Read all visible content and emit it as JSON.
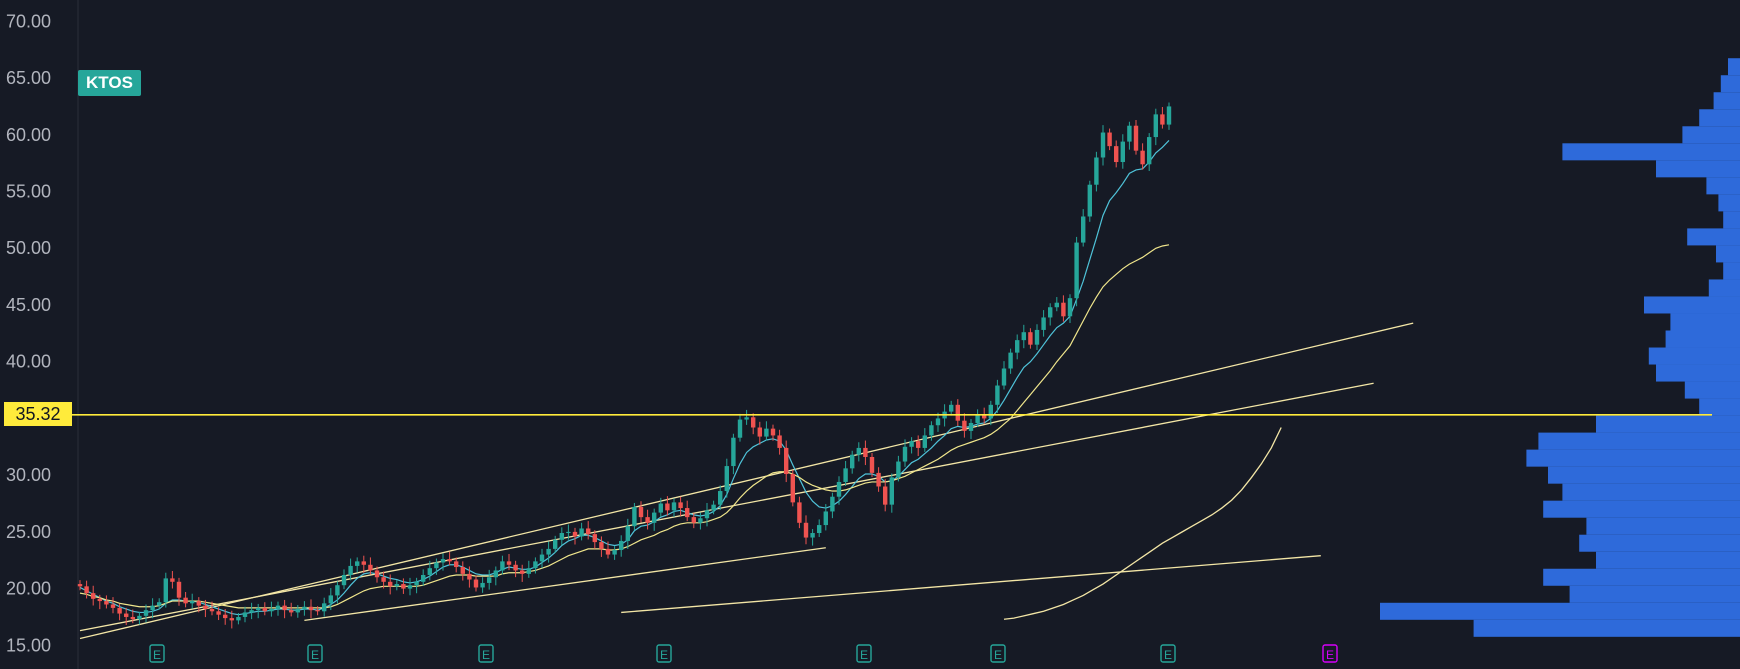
{
  "chart_data": {
    "type": "candlestick",
    "symbol": "KTOS",
    "y_axis": {
      "ticks": [
        "70.00",
        "65.00",
        "60.00",
        "55.00",
        "50.00",
        "45.00",
        "40.00",
        "35.00",
        "30.00",
        "25.00",
        "20.00",
        "15.00"
      ],
      "ylim": [
        14.5,
        71
      ]
    },
    "horizontal_level": {
      "label": "35.32",
      "value": 35.32
    },
    "earnings_markers": [
      "E",
      "E",
      "E",
      "E",
      "E",
      "E",
      "E",
      "E"
    ],
    "ohlc_closes": [
      20.2,
      19.6,
      19.1,
      18.9,
      18.6,
      18.3,
      17.8,
      17.5,
      17.3,
      17.6,
      18.1,
      18.5,
      18.8,
      20.9,
      20.6,
      19.2,
      18.7,
      18.9,
      18.5,
      18.2,
      18.0,
      17.7,
      17.4,
      17.2,
      17.5,
      17.9,
      18.1,
      18.3,
      18.0,
      18.2,
      18.5,
      18.1,
      17.9,
      18.2,
      18.4,
      18.1,
      18.0,
      18.7,
      19.4,
      20.3,
      21.2,
      22.0,
      22.4,
      22.1,
      21.6,
      21.0,
      20.6,
      20.2,
      20.4,
      20.0,
      20.3,
      20.6,
      21.2,
      21.8,
      22.3,
      22.6,
      22.4,
      21.9,
      21.3,
      20.8,
      20.1,
      20.5,
      21.0,
      21.6,
      22.4,
      22.1,
      21.6,
      21.3,
      21.8,
      22.4,
      23.0,
      23.5,
      24.3,
      24.9,
      25.0,
      24.6,
      25.3,
      24.8,
      24.1,
      23.5,
      23.0,
      23.4,
      24.2,
      25.5,
      27.2,
      26.3,
      25.8,
      26.7,
      27.5,
      26.9,
      27.6,
      27.1,
      26.3,
      25.8,
      26.2,
      26.9,
      27.4,
      28.6,
      30.8,
      33.3,
      34.9,
      35.1,
      34.2,
      33.4,
      34.1,
      33.5,
      32.4,
      30.1,
      27.6,
      25.8,
      24.5,
      24.9,
      25.6,
      26.8,
      28.1,
      29.4,
      30.6,
      31.8,
      32.4,
      31.6,
      30.2,
      29.0,
      27.4,
      29.8,
      31.2,
      32.5,
      33.0,
      32.4,
      33.5,
      34.4,
      35.0,
      35.6,
      36.2,
      34.8,
      33.9,
      34.6,
      35.3,
      35.0,
      36.2,
      37.9,
      39.4,
      40.8,
      41.9,
      42.6,
      41.5,
      42.8,
      43.9,
      44.8,
      45.2,
      44.0,
      45.6,
      50.5,
      52.8,
      55.6,
      58.0,
      60.2,
      59.0,
      57.6,
      59.4,
      60.8,
      58.6,
      57.4,
      59.8,
      61.8,
      60.9,
      62.5
    ],
    "moving_averages": [
      {
        "color": "#4fc3d9",
        "values": [
          20.1,
          19.8,
          19.5,
          19.2,
          18.9,
          18.7,
          18.4,
          18.2,
          18.0,
          17.9,
          17.9,
          18.0,
          18.2,
          18.7,
          19.0,
          19.0,
          18.9,
          18.9,
          18.8,
          18.6,
          18.4,
          18.2,
          18.0,
          17.8,
          17.7,
          17.8,
          17.9,
          18.0,
          18.0,
          18.1,
          18.2,
          18.2,
          18.1,
          18.1,
          18.2,
          18.2,
          18.1,
          18.3,
          18.6,
          19.0,
          19.6,
          20.3,
          20.9,
          21.3,
          21.4,
          21.3,
          21.1,
          20.9,
          20.8,
          20.6,
          20.5,
          20.6,
          20.8,
          21.1,
          21.5,
          21.9,
          22.1,
          22.1,
          21.9,
          21.6,
          21.3,
          21.2,
          21.2,
          21.4,
          21.7,
          21.9,
          21.8,
          21.7,
          21.7,
          21.9,
          22.3,
          22.7,
          23.2,
          23.8,
          24.2,
          24.4,
          24.7,
          24.7,
          24.5,
          24.2,
          23.9,
          23.8,
          23.9,
          24.3,
          25.1,
          25.5,
          25.6,
          25.9,
          26.3,
          26.5,
          26.8,
          26.9,
          26.7,
          26.5,
          26.4,
          26.5,
          26.8,
          27.3,
          28.3,
          29.7,
          31.0,
          32.0,
          32.5,
          32.8,
          33.1,
          33.2,
          33.0,
          32.2,
          30.9,
          29.7,
          28.5,
          27.7,
          27.2,
          27.1,
          27.3,
          27.7,
          28.3,
          29.0,
          29.7,
          30.1,
          30.1,
          29.9,
          29.4,
          29.5,
          29.9,
          30.5,
          31.1,
          31.4,
          31.9,
          32.4,
          33.0,
          33.5,
          34.1,
          34.3,
          34.2,
          34.3,
          34.5,
          34.6,
          35.0,
          35.7,
          36.6,
          37.6,
          38.6,
          39.5,
          40.0,
          40.7,
          41.5,
          42.3,
          43.0,
          43.4,
          44.0,
          45.5,
          47.1,
          49.0,
          50.9,
          52.9,
          54.2,
          54.9,
          55.7,
          56.6,
          56.9,
          57.0,
          57.6,
          58.4,
          58.9,
          59.5
        ]
      },
      {
        "color": "#f0e68c",
        "values": [
          19.6,
          19.5,
          19.3,
          19.2,
          19.0,
          18.9,
          18.7,
          18.6,
          18.5,
          18.4,
          18.4,
          18.4,
          18.5,
          18.7,
          18.9,
          18.9,
          18.9,
          18.9,
          18.9,
          18.8,
          18.7,
          18.6,
          18.5,
          18.4,
          18.3,
          18.3,
          18.3,
          18.3,
          18.3,
          18.3,
          18.3,
          18.3,
          18.3,
          18.3,
          18.3,
          18.3,
          18.3,
          18.3,
          18.4,
          18.6,
          18.9,
          19.2,
          19.5,
          19.8,
          20.0,
          20.1,
          20.2,
          20.2,
          20.2,
          20.2,
          20.2,
          20.2,
          20.3,
          20.5,
          20.7,
          20.9,
          21.1,
          21.2,
          21.2,
          21.2,
          21.1,
          21.1,
          21.1,
          21.1,
          21.3,
          21.4,
          21.4,
          21.4,
          21.5,
          21.6,
          21.8,
          22.0,
          22.3,
          22.6,
          22.9,
          23.1,
          23.3,
          23.5,
          23.5,
          23.5,
          23.4,
          23.4,
          23.5,
          23.7,
          24.0,
          24.3,
          24.5,
          24.7,
          25.0,
          25.2,
          25.5,
          25.7,
          25.8,
          25.8,
          25.8,
          25.9,
          26.1,
          26.3,
          26.7,
          27.3,
          28.0,
          28.6,
          29.1,
          29.5,
          29.9,
          30.2,
          30.3,
          30.3,
          30.1,
          29.8,
          29.4,
          29.1,
          28.9,
          28.7,
          28.6,
          28.6,
          28.7,
          28.9,
          29.1,
          29.3,
          29.4,
          29.4,
          29.4,
          29.5,
          29.7,
          29.9,
          30.2,
          30.5,
          30.8,
          31.1,
          31.4,
          31.8,
          32.2,
          32.5,
          32.7,
          32.9,
          33.1,
          33.3,
          33.6,
          34.0,
          34.5,
          35.0,
          35.7,
          36.4,
          37.1,
          37.8,
          38.5,
          39.2,
          40.0,
          40.7,
          41.4,
          42.5,
          43.6,
          44.7,
          45.7,
          46.6,
          47.2,
          47.7,
          48.2,
          48.6,
          48.9,
          49.2,
          49.6,
          50.0,
          50.2,
          50.3
        ]
      }
    ],
    "trendlines": [
      {
        "from": {
          "index": 0,
          "price": 15.6
        },
        "to": {
          "index": 202,
          "price": 43.4
        }
      },
      {
        "from": {
          "index": 0,
          "price": 16.3
        },
        "to": {
          "index": 196,
          "price": 38.1
        }
      },
      {
        "from": {
          "index": 82,
          "price": 17.9
        },
        "to": {
          "index": 188,
          "price": 22.9
        }
      },
      {
        "from": {
          "index": 34,
          "price": 17.2
        },
        "to": {
          "index": 113,
          "price": 23.6
        }
      }
    ],
    "trendline_200": [
      17.3,
      17.4,
      17.6,
      17.8,
      18.0,
      18.3,
      18.6,
      19.0,
      19.4,
      19.9,
      20.4,
      21.0,
      21.6,
      22.2,
      22.8,
      23.4,
      24.0,
      24.5,
      25.0,
      25.5,
      26.0,
      26.5,
      27.1,
      27.8,
      28.7,
      29.8,
      31.0,
      32.4,
      34.2
    ],
    "volume_profile": [
      {
        "price": 66.0,
        "width": 10
      },
      {
        "price": 64.5,
        "width": 16
      },
      {
        "price": 63.0,
        "width": 22
      },
      {
        "price": 61.5,
        "width": 34
      },
      {
        "price": 60.0,
        "width": 48
      },
      {
        "price": 58.5,
        "width": 148
      },
      {
        "price": 57.0,
        "width": 70
      },
      {
        "price": 55.5,
        "width": 28
      },
      {
        "price": 54.0,
        "width": 18
      },
      {
        "price": 52.5,
        "width": 14
      },
      {
        "price": 51.0,
        "width": 44
      },
      {
        "price": 49.5,
        "width": 20
      },
      {
        "price": 48.0,
        "width": 14
      },
      {
        "price": 46.5,
        "width": 26
      },
      {
        "price": 45.0,
        "width": 80
      },
      {
        "price": 43.5,
        "width": 58
      },
      {
        "price": 42.0,
        "width": 62
      },
      {
        "price": 40.5,
        "width": 76
      },
      {
        "price": 39.0,
        "width": 70
      },
      {
        "price": 37.5,
        "width": 46
      },
      {
        "price": 36.0,
        "width": 34
      },
      {
        "price": 34.5,
        "width": 120
      },
      {
        "price": 33.0,
        "width": 168
      },
      {
        "price": 31.5,
        "width": 178
      },
      {
        "price": 30.0,
        "width": 160
      },
      {
        "price": 28.5,
        "width": 148
      },
      {
        "price": 27.0,
        "width": 164
      },
      {
        "price": 25.5,
        "width": 128
      },
      {
        "price": 24.0,
        "width": 134
      },
      {
        "price": 22.5,
        "width": 120
      },
      {
        "price": 21.0,
        "width": 164
      },
      {
        "price": 19.5,
        "width": 142
      },
      {
        "price": 18.0,
        "width": 300
      },
      {
        "price": 16.5,
        "width": 222
      }
    ]
  }
}
